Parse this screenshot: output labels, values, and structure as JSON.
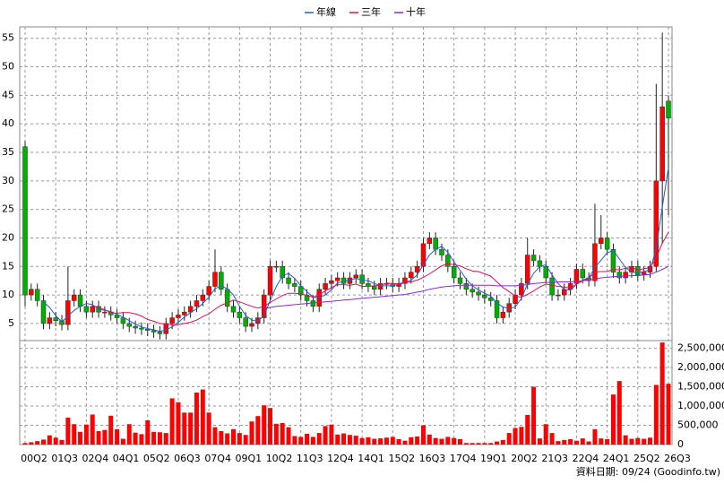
{
  "chart_data": {
    "type": "candlestick",
    "categories": [
      "00Q2",
      null,
      null,
      null,
      null,
      "01Q3",
      null,
      null,
      null,
      null,
      "02Q4",
      null,
      null,
      null,
      null,
      "04Q1",
      null,
      null,
      null,
      null,
      "05Q2",
      null,
      null,
      null,
      null,
      "06Q3",
      null,
      null,
      null,
      null,
      "07Q4",
      null,
      null,
      null,
      null,
      "09Q1",
      null,
      null,
      null,
      null,
      "10Q2",
      null,
      null,
      null,
      null,
      "11Q3",
      null,
      null,
      null,
      null,
      "12Q4",
      null,
      null,
      null,
      null,
      "14Q1",
      null,
      null,
      null,
      null,
      "15Q2",
      null,
      null,
      null,
      null,
      "16Q3",
      null,
      null,
      null,
      null,
      "17Q4",
      null,
      null,
      null,
      null,
      "19Q1",
      null,
      null,
      null,
      null,
      "20Q2",
      null,
      null,
      null,
      null,
      "21Q3",
      null,
      null,
      null,
      null,
      "22Q4",
      null,
      null,
      null,
      null,
      "24Q1",
      null,
      null,
      null,
      null,
      "25Q2",
      null,
      null,
      null,
      null,
      "26Q3"
    ],
    "candles": {
      "open": [
        36,
        10,
        11,
        9,
        5,
        6,
        5.5,
        4.8,
        9,
        10,
        8,
        7,
        8,
        7,
        7,
        6.5,
        6,
        5,
        4.5,
        4.2,
        4,
        3.8,
        3.5,
        3.2,
        5,
        6,
        6.5,
        7,
        8,
        9,
        10,
        11.5,
        14,
        11,
        8,
        7,
        6,
        4.5,
        5,
        6,
        10,
        15,
        15,
        13,
        12,
        11.5,
        10,
        9,
        8,
        11,
        12,
        12.5,
        13,
        12,
        13,
        13.5,
        12,
        11.5,
        11,
        12,
        12,
        11.5,
        12,
        13,
        14,
        15,
        19,
        20,
        18,
        17,
        15,
        13,
        12,
        11,
        10.5,
        10,
        9.5,
        9,
        6,
        7,
        8.5,
        10,
        12,
        17,
        16,
        15,
        13,
        10,
        10,
        11,
        12,
        14.5,
        13,
        12.5,
        19,
        20,
        18,
        14,
        13,
        14,
        15,
        13.5,
        14,
        15,
        30,
        44
      ],
      "high": [
        37,
        12,
        12,
        10,
        7,
        7,
        6.5,
        15,
        11,
        11,
        9,
        9,
        9,
        8,
        8,
        7.5,
        7,
        6,
        5.5,
        5.2,
        5,
        4.8,
        4.5,
        6,
        7,
        7.5,
        8,
        9,
        10,
        11,
        12.5,
        18,
        15,
        12,
        9,
        8,
        7,
        6,
        7,
        11,
        16,
        16,
        16,
        14,
        13,
        12.5,
        11,
        10,
        12,
        13,
        13.5,
        14,
        14,
        14,
        14.5,
        14.5,
        13,
        12.5,
        13,
        13,
        13,
        13,
        14,
        15,
        16,
        20,
        21,
        21,
        19,
        18,
        16,
        14,
        13,
        12,
        11.5,
        11,
        10.5,
        10,
        8,
        9.5,
        11,
        13,
        20,
        18,
        17,
        16,
        14,
        11,
        12,
        13,
        15.5,
        15.5,
        14,
        26,
        24,
        21,
        19,
        15,
        15,
        16,
        16,
        15,
        16,
        47,
        56,
        45
      ],
      "low": [
        8,
        9,
        8,
        4,
        4,
        4.5,
        3.8,
        3.8,
        8,
        7,
        6,
        6,
        6,
        6,
        5.5,
        5,
        4,
        3.5,
        3.2,
        3,
        2.8,
        2.5,
        2.2,
        2.2,
        4,
        5,
        5.5,
        6,
        7,
        8,
        9,
        10.5,
        10,
        7,
        6,
        5,
        3.5,
        3.5,
        4,
        5,
        9,
        14,
        12,
        11,
        10.5,
        9,
        8,
        7,
        7,
        10,
        11,
        11.5,
        11,
        11,
        12,
        11,
        10.5,
        10,
        10,
        11,
        10.5,
        10.5,
        11,
        12,
        13,
        14,
        18,
        17,
        16,
        14,
        12,
        11,
        10,
        9.5,
        9,
        8.5,
        8,
        5,
        5,
        6,
        7.5,
        9,
        11,
        15,
        14,
        12,
        9,
        9,
        9,
        10,
        11,
        12,
        11.5,
        11.5,
        18,
        17,
        13,
        12,
        12,
        13,
        12.5,
        12.5,
        13,
        14,
        19,
        24
      ],
      "close": [
        10,
        11,
        9,
        5,
        6,
        5.5,
        4.8,
        9,
        10,
        8,
        7,
        8,
        7,
        7,
        6.5,
        6,
        5,
        4.5,
        4.2,
        4,
        3.8,
        3.5,
        3.2,
        5,
        6,
        6.5,
        7,
        8,
        9,
        10,
        11.5,
        14,
        11,
        8,
        7,
        6,
        4.5,
        5,
        6,
        10,
        15,
        15,
        13,
        12,
        11.5,
        10,
        9,
        8,
        11,
        12,
        12.5,
        13,
        12,
        13,
        13.5,
        12,
        11.5,
        11,
        12,
        12,
        11.5,
        12,
        13,
        14,
        15,
        19,
        20,
        18,
        17,
        15,
        13,
        12,
        11,
        10.5,
        10,
        9.5,
        9,
        6,
        7,
        8.5,
        10,
        12,
        17,
        16,
        15,
        13,
        10,
        10,
        11,
        12,
        14.5,
        13,
        12.5,
        19,
        20,
        18,
        14,
        13,
        14,
        15,
        13.5,
        14,
        15,
        30,
        43,
        41
      ],
      "up_color": "#ff0000",
      "down_color": "#00b000"
    },
    "series": [
      {
        "name": "年線",
        "color": "#1f5fd6",
        "values": [
          null,
          null,
          null,
          8.8,
          7.8,
          6.4,
          5.3,
          6.3,
          7.3,
          8.0,
          8.5,
          8.3,
          7.5,
          7.3,
          7.1,
          6.6,
          6.1,
          5.5,
          4.9,
          4.4,
          4.1,
          3.9,
          3.6,
          3.9,
          4.4,
          5.2,
          6.1,
          6.9,
          7.6,
          8.5,
          9.6,
          11.1,
          11.6,
          11.1,
          10,
          8,
          6.4,
          5.6,
          5.4,
          6.4,
          9,
          11.5,
          13.3,
          13.8,
          12.9,
          11.6,
          10.6,
          9.6,
          9.5,
          10,
          10.9,
          12.1,
          12.4,
          12.6,
          12.9,
          12.6,
          12.5,
          12,
          11.6,
          11.6,
          11.6,
          11.9,
          12.1,
          12.6,
          13.5,
          15.3,
          17,
          18,
          18.5,
          17.5,
          15.8,
          14.3,
          12.8,
          11.6,
          10.9,
          10.3,
          9.8,
          8.6,
          7.9,
          7.6,
          7.9,
          9.4,
          11.9,
          13.8,
          15,
          15.3,
          13.5,
          12,
          11,
          10.8,
          11.9,
          12.6,
          13,
          14.8,
          16.1,
          17.4,
          17.8,
          16.3,
          14.8,
          14,
          13.9,
          14.1,
          14.4,
          18.1,
          25.5,
          32.3
        ]
      },
      {
        "name": "三年",
        "color": "#e0105a",
        "values": [
          null,
          null,
          null,
          null,
          null,
          null,
          null,
          null,
          null,
          null,
          null,
          8.1,
          7.8,
          7.4,
          6.9,
          6.8,
          6.9,
          6.9,
          6.7,
          6.3,
          5.7,
          5.4,
          5.0,
          4.9,
          4.8,
          4.8,
          5.0,
          5.2,
          5.6,
          6.2,
          6.7,
          7.5,
          8.2,
          8.6,
          9.1,
          8.8,
          8.4,
          8.0,
          7.7,
          8.0,
          8.7,
          9.3,
          9.9,
          10.3,
          10.3,
          10.2,
          9.9,
          9.6,
          10.0,
          10.7,
          11.3,
          11.8,
          11.8,
          11.7,
          11.9,
          11.5,
          11.5,
          11.6,
          11.7,
          12.1,
          12.0,
          12.0,
          12.2,
          12.3,
          12.6,
          13.1,
          13.7,
          14.4,
          15.1,
          15.5,
          15.3,
          15.1,
          14.6,
          14.2,
          14.1,
          13.7,
          13.3,
          12.3,
          11.3,
          10.6,
          9.8,
          9.6,
          10.1,
          10.7,
          11.4,
          11.9,
          11.7,
          11.5,
          11.4,
          11.2,
          11.9,
          12.5,
          12.9,
          14.0,
          14.1,
          14.1,
          14.5,
          14.4,
          14.7,
          14.8,
          14.4,
          14.6,
          14.8,
          16.5,
          19.1,
          21.0
        ]
      },
      {
        "name": "十年",
        "color": "#8a2be2",
        "values": [
          null,
          null,
          null,
          null,
          null,
          null,
          null,
          null,
          null,
          null,
          null,
          null,
          null,
          null,
          null,
          null,
          null,
          null,
          null,
          null,
          null,
          null,
          null,
          null,
          null,
          null,
          null,
          null,
          null,
          null,
          null,
          null,
          null,
          null,
          null,
          null,
          null,
          null,
          null,
          7.6,
          7.8,
          8.0,
          8.1,
          8.2,
          8.3,
          8.4,
          8.5,
          8.6,
          8.7,
          8.8,
          8.9,
          9.0,
          9.1,
          9.2,
          9.3,
          9.4,
          9.5,
          9.6,
          9.7,
          9.8,
          9.9,
          10.0,
          10.1,
          10.3,
          10.5,
          10.7,
          11.0,
          11.2,
          11.4,
          11.5,
          11.6,
          11.7,
          11.7,
          11.7,
          11.7,
          11.7,
          11.7,
          11.6,
          11.6,
          11.6,
          11.6,
          11.7,
          11.8,
          12.0,
          12.1,
          12.2,
          12.2,
          12.3,
          12.3,
          12.3,
          12.4,
          12.5,
          12.6,
          12.8,
          13.0,
          13.1,
          13.2,
          13.3,
          13.3,
          13.4,
          13.4,
          13.5,
          13.6,
          14.0,
          14.5,
          15.0
        ]
      }
    ],
    "volume": {
      "color": "#ff0000",
      "values": [
        40000,
        60000,
        90000,
        130000,
        240000,
        180000,
        120000,
        700000,
        530000,
        330000,
        520000,
        780000,
        350000,
        380000,
        750000,
        400000,
        150000,
        530000,
        310000,
        270000,
        630000,
        330000,
        320000,
        300000,
        1200000,
        1100000,
        830000,
        830000,
        1350000,
        1430000,
        830000,
        450000,
        350000,
        290000,
        400000,
        300000,
        250000,
        600000,
        740000,
        1020000,
        950000,
        540000,
        560000,
        450000,
        220000,
        200000,
        280000,
        200000,
        300000,
        480000,
        520000,
        260000,
        290000,
        250000,
        230000,
        170000,
        190000,
        150000,
        160000,
        180000,
        200000,
        140000,
        100000,
        190000,
        210000,
        500000,
        260000,
        170000,
        150000,
        200000,
        170000,
        140000,
        40000,
        40000,
        40000,
        40000,
        40000,
        80000,
        120000,
        300000,
        430000,
        460000,
        770000,
        1500000,
        160000,
        530000,
        300000,
        90000,
        120000,
        140000,
        100000,
        160000,
        80000,
        400000,
        160000,
        140000,
        1300000,
        1650000,
        240000,
        150000,
        170000,
        150000,
        180000,
        1550000,
        2650000,
        1580000
      ],
      "ylim": [
        0,
        2700000
      ],
      "yticks": [
        0,
        {
          "value": 500000,
          "label": "500,000"
        },
        {
          "value": 1000000,
          "label": "1,000,000"
        },
        {
          "value": 1500000,
          "label": "1,500,000"
        },
        {
          "value": 2000000,
          "label": "2,000,000"
        },
        {
          "value": 2500000,
          "label": "2,500,000"
        }
      ]
    },
    "ylim": [
      2,
      57
    ],
    "yticks": [
      5,
      10,
      15,
      20,
      25,
      30,
      35,
      40,
      45,
      50,
      55
    ],
    "grid": true,
    "footnote": "資料日期: 09/24 (Goodinfo.tw)"
  }
}
